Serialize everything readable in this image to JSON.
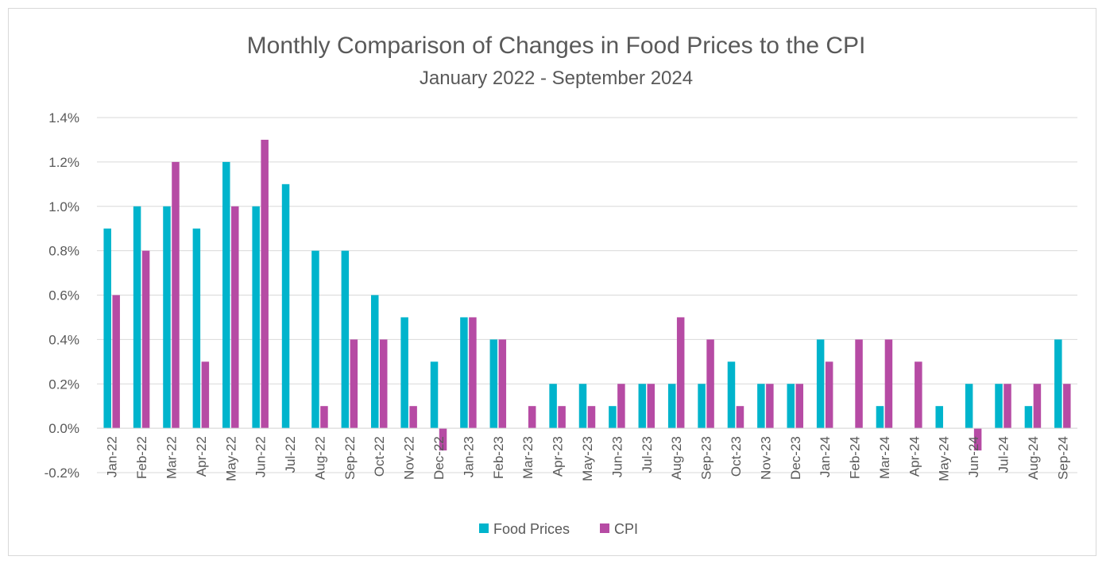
{
  "chart_data": {
    "type": "bar",
    "title": "Monthly Comparison of Changes in Food Prices to the CPI",
    "subtitle": "January 2022 - September 2024",
    "xlabel": "",
    "ylabel": "",
    "ylim": [
      -0.2,
      1.4
    ],
    "yticks": [
      -0.2,
      0.0,
      0.2,
      0.4,
      0.6,
      0.8,
      1.0,
      1.2,
      1.4
    ],
    "ytick_labels": [
      "-0.2%",
      "0.0%",
      "0.2%",
      "0.4%",
      "0.6%",
      "0.8%",
      "1.0%",
      "1.2%",
      "1.4%"
    ],
    "grid": true,
    "legend_position": "bottom",
    "categories": [
      "Jan-22",
      "Feb-22",
      "Mar-22",
      "Apr-22",
      "May-22",
      "Jun-22",
      "Jul-22",
      "Aug-22",
      "Sep-22",
      "Oct-22",
      "Nov-22",
      "Dec-22",
      "Jan-23",
      "Feb-23",
      "Mar-23",
      "Apr-23",
      "May-23",
      "Jun-23",
      "Jul-23",
      "Aug-23",
      "Sep-23",
      "Oct-23",
      "Nov-23",
      "Dec-23",
      "Jan-24",
      "Feb-24",
      "Mar-24",
      "Apr-24",
      "May-24",
      "Jun-24",
      "Jul-24",
      "Aug-24",
      "Sep-24"
    ],
    "series": [
      {
        "name": "Food Prices",
        "color": "#00b4cc",
        "values": [
          0.9,
          1.0,
          1.0,
          0.9,
          1.2,
          1.0,
          1.1,
          0.8,
          0.8,
          0.6,
          0.5,
          0.3,
          0.5,
          0.4,
          0.0,
          0.2,
          0.2,
          0.1,
          0.2,
          0.2,
          0.2,
          0.3,
          0.2,
          0.2,
          0.4,
          0.0,
          0.1,
          0.0,
          0.1,
          0.2,
          0.2,
          0.1,
          0.4
        ]
      },
      {
        "name": "CPI",
        "color": "#b64ba4",
        "values": [
          0.6,
          0.8,
          1.2,
          0.3,
          1.0,
          1.3,
          0.0,
          0.1,
          0.4,
          0.4,
          0.1,
          -0.1,
          0.5,
          0.4,
          0.1,
          0.1,
          0.1,
          0.2,
          0.2,
          0.5,
          0.4,
          0.1,
          0.2,
          0.2,
          0.3,
          0.4,
          0.4,
          0.3,
          0.0,
          -0.1,
          0.2,
          0.2,
          0.2
        ]
      }
    ]
  }
}
